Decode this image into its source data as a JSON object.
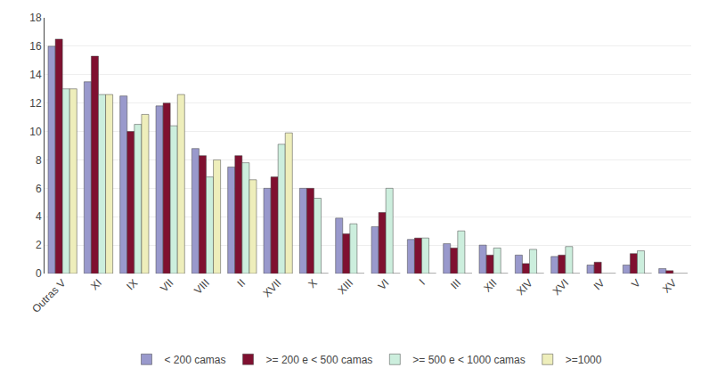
{
  "chart_data": {
    "type": "bar",
    "categories": [
      "Outras V",
      "XI",
      "IX",
      "VII",
      "VIII",
      "II",
      "XVII",
      "X",
      "XIII",
      "VI",
      "I",
      "III",
      "XII",
      "XIV",
      "XVI",
      "IV",
      "V",
      "XV"
    ],
    "series": [
      {
        "name": "< 200 camas",
        "color": "#9999cc",
        "values": [
          16.0,
          13.5,
          12.5,
          11.8,
          8.8,
          7.5,
          6.0,
          6.0,
          3.9,
          3.3,
          2.4,
          2.1,
          2.0,
          1.3,
          1.2,
          0.6,
          0.6,
          0.35
        ]
      },
      {
        "name": ">= 200 e < 500 camas",
        "color": "#7f1030",
        "values": [
          16.5,
          15.3,
          10.0,
          12.0,
          8.3,
          8.3,
          6.8,
          6.0,
          2.8,
          4.3,
          2.5,
          1.8,
          1.3,
          0.7,
          1.3,
          0.8,
          1.4,
          0.2
        ]
      },
      {
        "name": ">= 500 e < 1000 camas",
        "color": "#cceedd",
        "values": [
          13.0,
          12.6,
          10.5,
          10.4,
          6.8,
          7.8,
          9.1,
          5.3,
          3.5,
          6.0,
          2.5,
          3.0,
          1.8,
          1.7,
          1.9,
          0.0,
          1.6,
          0.0
        ]
      },
      {
        "name": ">=1000",
        "color": "#eeeebb",
        "values": [
          13.0,
          12.6,
          11.2,
          12.6,
          8.0,
          6.6,
          9.9,
          0.0,
          0.0,
          0.0,
          0.0,
          0.0,
          0.0,
          0.0,
          0.0,
          0.0,
          0.0,
          0.0
        ]
      }
    ],
    "ylim": [
      0,
      18.0
    ],
    "yticks": [
      0,
      2,
      4,
      6,
      8,
      10,
      12,
      14,
      16,
      18
    ],
    "grid": true,
    "legend": "bottom"
  }
}
